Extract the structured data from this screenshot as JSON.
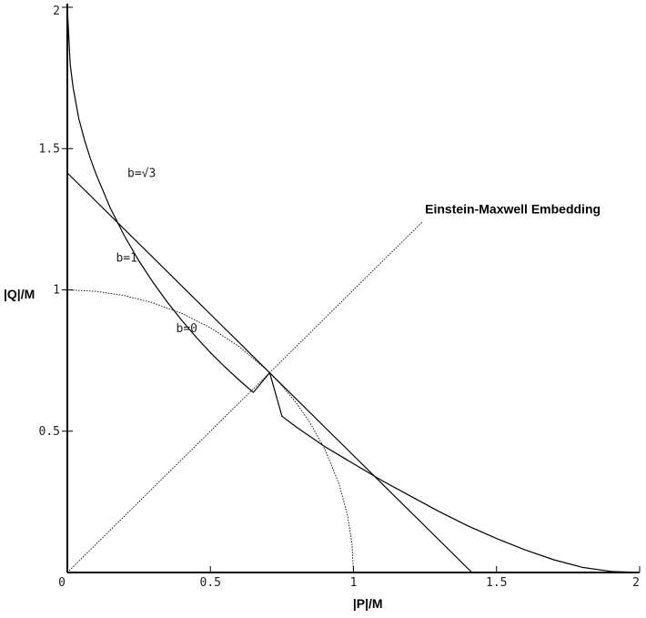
{
  "chart_data": {
    "type": "line",
    "title": "",
    "xlabel": "|P|/M",
    "ylabel": "|Q|/M",
    "xlim": [
      0,
      2
    ],
    "ylim": [
      0,
      2
    ],
    "grid": false,
    "x_ticks": [
      {
        "value": 0,
        "label": "0"
      },
      {
        "value": 0.5,
        "label": "0.5"
      },
      {
        "value": 1,
        "label": "1"
      },
      {
        "value": 1.5,
        "label": "1.5"
      },
      {
        "value": 2,
        "label": "2"
      }
    ],
    "y_ticks": [
      {
        "value": 0.5,
        "label": "0.5"
      },
      {
        "value": 1,
        "label": "1"
      },
      {
        "value": 1.5,
        "label": "1.5"
      },
      {
        "value": 2,
        "label": "2"
      }
    ],
    "series": [
      {
        "name": "b=√3",
        "style": "solid",
        "label_at": [
          0.21,
          1.4
        ],
        "points": [
          [
            0,
            2
          ],
          [
            0.01,
            1.8
          ],
          [
            0.02,
            1.717
          ],
          [
            0.04,
            1.606
          ],
          [
            0.06,
            1.53
          ],
          [
            0.08,
            1.466
          ],
          [
            0.1,
            1.41
          ],
          [
            0.15,
            1.29
          ],
          [
            0.2,
            1.19
          ],
          [
            0.25,
            1.103
          ],
          [
            0.3,
            1.026
          ],
          [
            0.35,
            0.956
          ],
          [
            0.4,
            0.892
          ],
          [
            0.45,
            0.833
          ],
          [
            0.5,
            0.778
          ],
          [
            0.55,
            0.728
          ],
          [
            0.6,
            0.681
          ],
          [
            0.65,
            0.637
          ],
          [
            0.707,
            0.707
          ],
          [
            0.75,
            0.553
          ],
          [
            0.8,
            0.515
          ],
          [
            0.9,
            0.445
          ],
          [
            1.0,
            0.385
          ],
          [
            1.1,
            0.325
          ],
          [
            1.2,
            0.27
          ],
          [
            1.3,
            0.215
          ],
          [
            1.4,
            0.165
          ],
          [
            1.5,
            0.12
          ],
          [
            1.6,
            0.08
          ],
          [
            1.7,
            0.045
          ],
          [
            1.8,
            0.018
          ],
          [
            1.9,
            0.004
          ],
          [
            2.0,
            0
          ]
        ]
      },
      {
        "name": "b=1",
        "style": "solid",
        "label_at": [
          0.17,
          1.1
        ],
        "points": [
          [
            0,
            1.414
          ],
          [
            1.414,
            0
          ]
        ]
      },
      {
        "name": "b=0",
        "style": "dotted",
        "label_at": [
          0.38,
          0.85
        ],
        "points": [
          [
            0,
            1
          ],
          [
            0.1,
            0.995
          ],
          [
            0.2,
            0.98
          ],
          [
            0.3,
            0.954
          ],
          [
            0.4,
            0.917
          ],
          [
            0.5,
            0.866
          ],
          [
            0.6,
            0.8
          ],
          [
            0.7,
            0.714
          ],
          [
            0.75,
            0.661
          ],
          [
            0.8,
            0.6
          ],
          [
            0.85,
            0.527
          ],
          [
            0.9,
            0.436
          ],
          [
            0.95,
            0.312
          ],
          [
            0.98,
            0.199
          ],
          [
            0.995,
            0.1
          ],
          [
            1.0,
            0
          ]
        ]
      },
      {
        "name": "Einstein-Maxwell Embedding",
        "style": "dotted",
        "label_at": [
          1.25,
          1.27
        ],
        "points": [
          [
            0,
            0
          ],
          [
            1.24,
            1.24
          ]
        ]
      }
    ]
  }
}
